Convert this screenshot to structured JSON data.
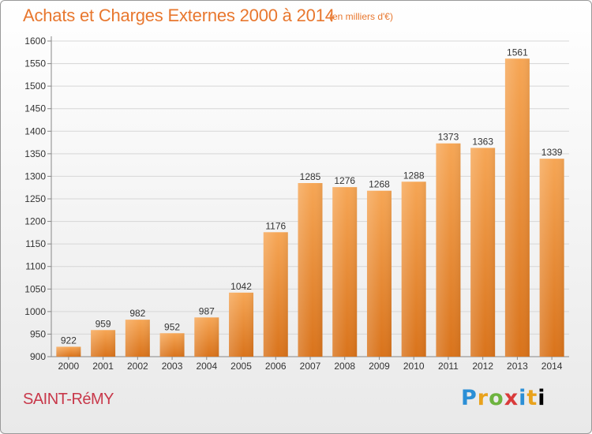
{
  "header": {
    "title": "Achats et Charges Externes 2000 à 2014",
    "unit": "(en milliers d'€)"
  },
  "footer": {
    "commune": "SAINT-RéMY",
    "brand": "Proxiti"
  },
  "colors": {
    "title": "#e8772e",
    "commune": "#c8384a",
    "bar_top": "#f6a655",
    "bar_bottom": "#d9731b"
  },
  "chart_data": {
    "type": "bar",
    "title": "Achats et Charges Externes 2000 à 2014",
    "subtitle": "(en milliers d'€)",
    "xlabel": "",
    "ylabel": "",
    "categories": [
      "2000",
      "2001",
      "2002",
      "2003",
      "2004",
      "2005",
      "2006",
      "2007",
      "2008",
      "2009",
      "2010",
      "2011",
      "2012",
      "2013",
      "2014"
    ],
    "values": [
      922,
      959,
      982,
      952,
      987,
      1042,
      1176,
      1285,
      1276,
      1268,
      1288,
      1373,
      1363,
      1561,
      1339
    ],
    "data_labels": [
      "922",
      "959",
      "982",
      "952",
      "987",
      "1042",
      "1176",
      "1285",
      "1276",
      "1268",
      "1288",
      "1373",
      "1363",
      "1561",
      "1339"
    ],
    "ylim": [
      900,
      1600
    ],
    "yticks": [
      900,
      950,
      1000,
      1050,
      1100,
      1150,
      1200,
      1250,
      1300,
      1350,
      1400,
      1450,
      1500,
      1550,
      1600
    ],
    "grid": true,
    "legend": "none"
  }
}
